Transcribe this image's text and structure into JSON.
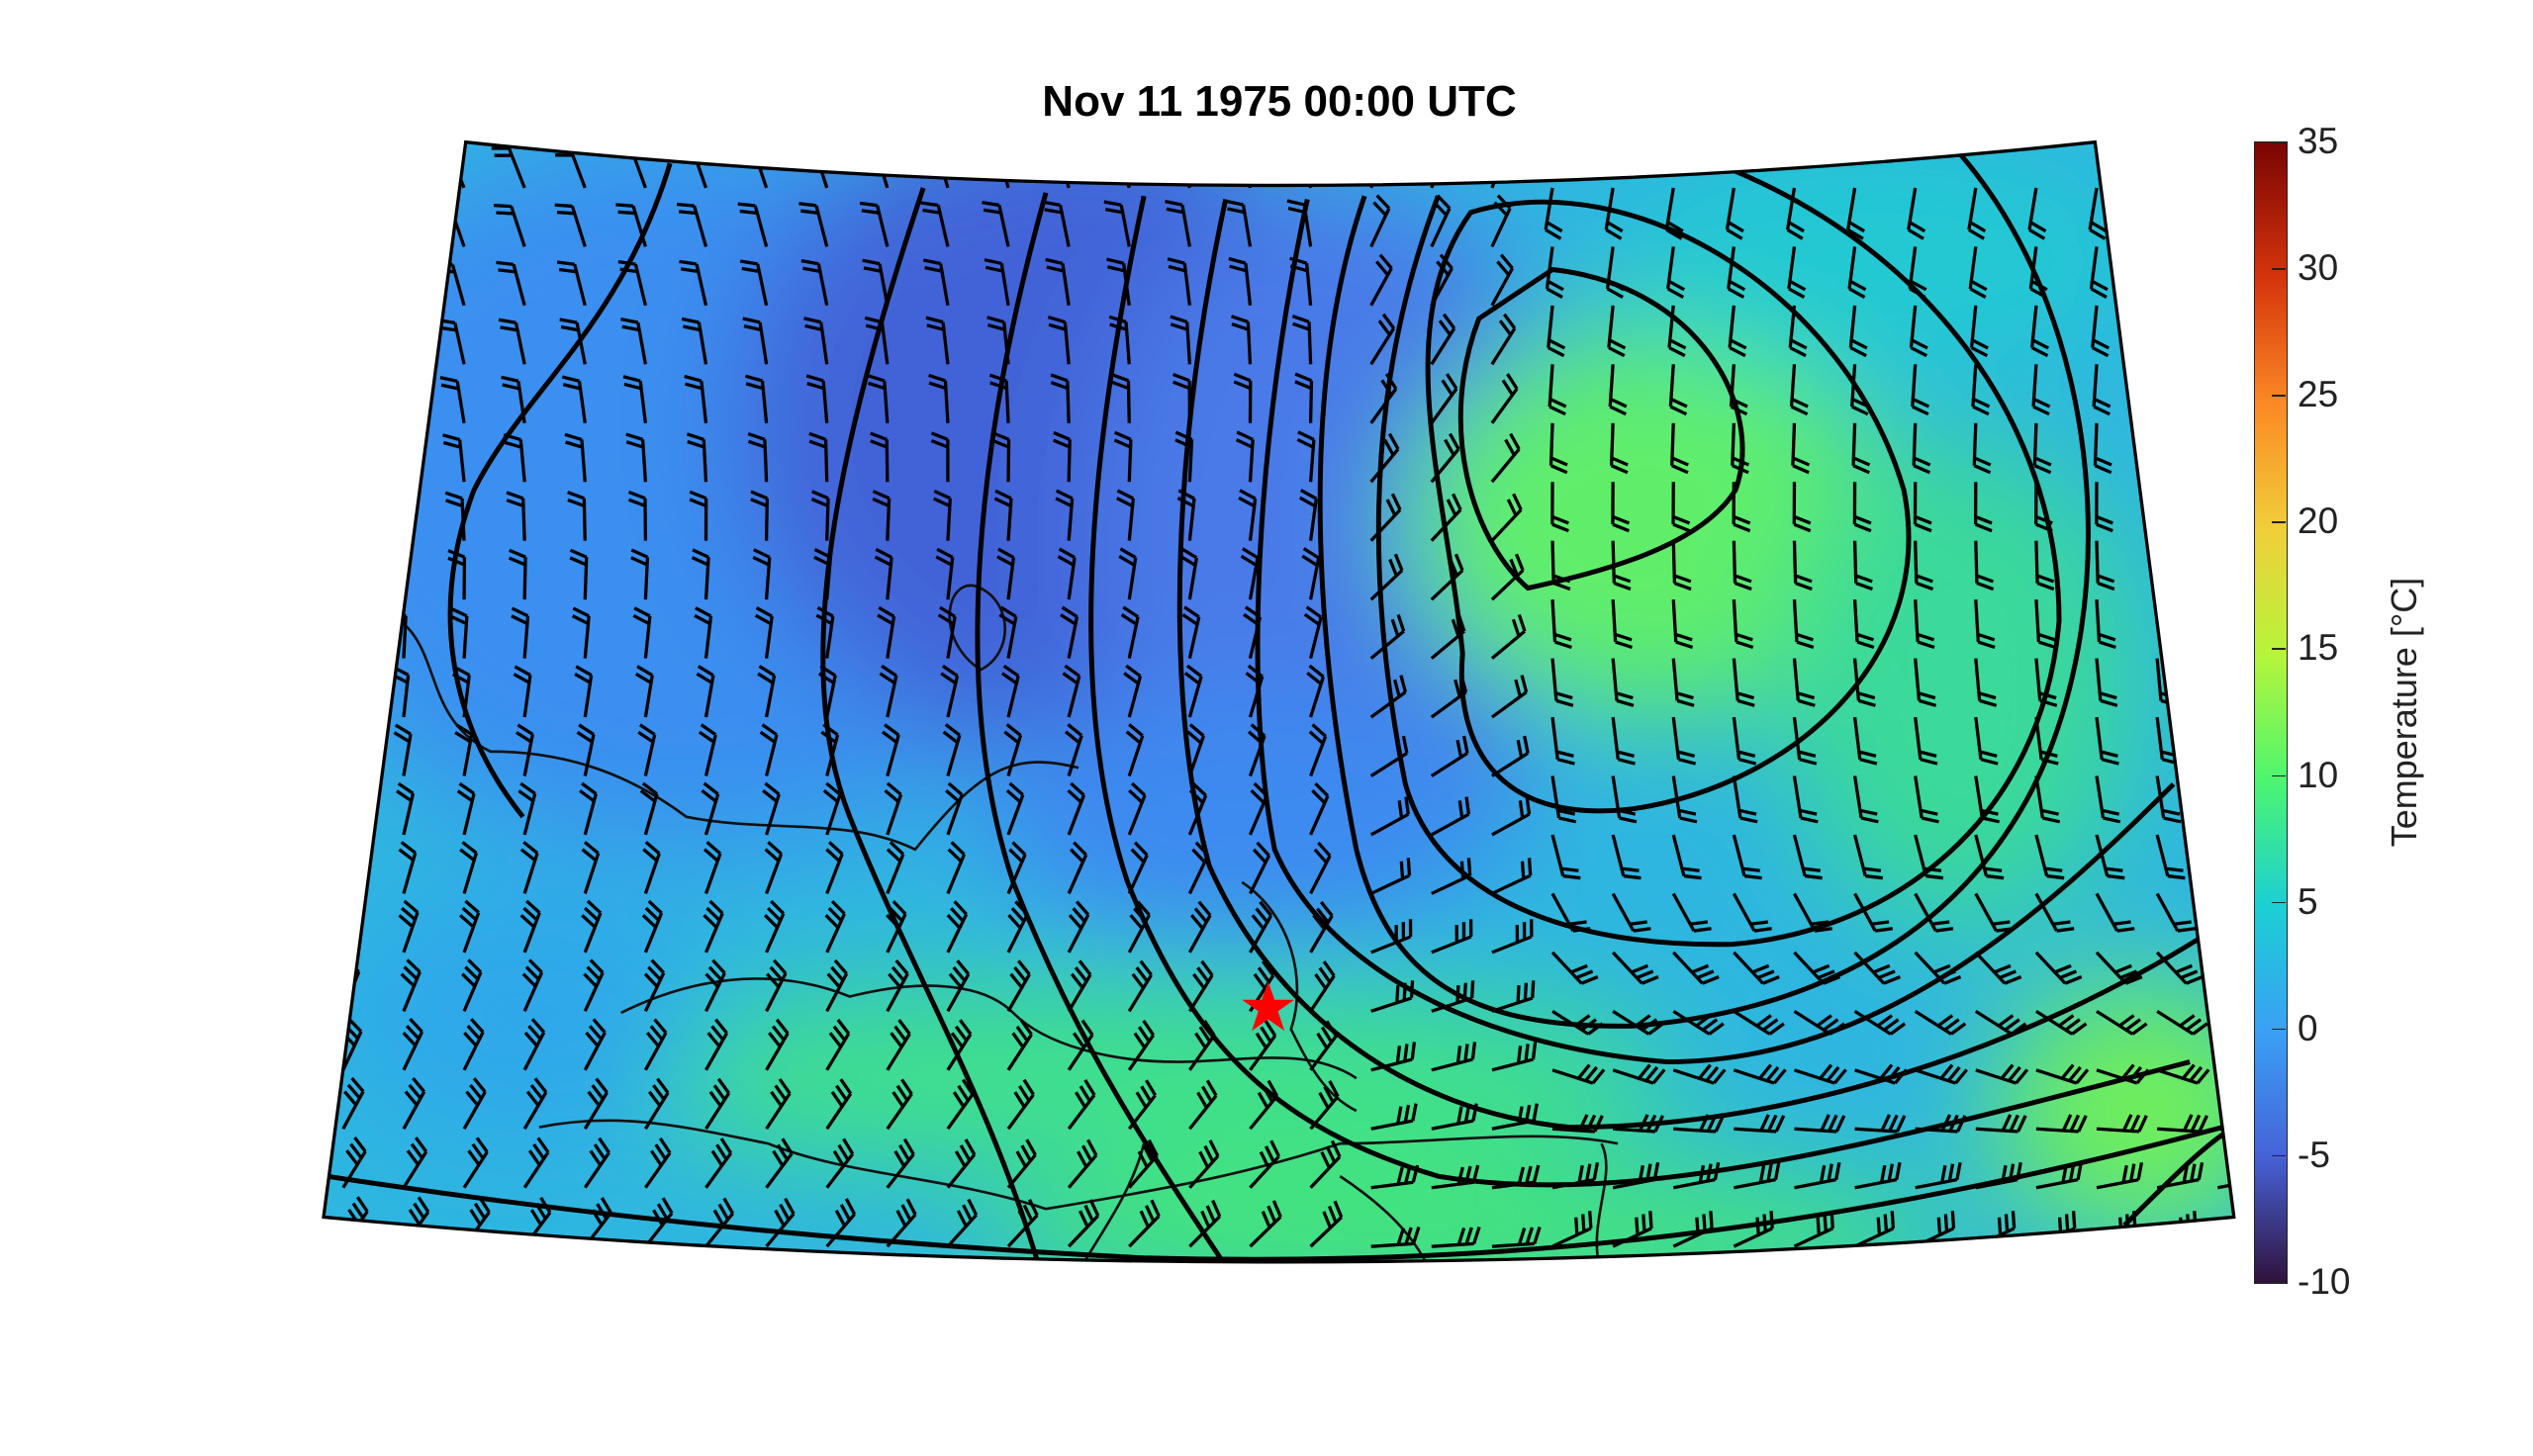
{
  "title": "Nov 11 1975 00:00 UTC",
  "colorbar": {
    "label": "Temperature [°C]",
    "range": [
      -10,
      35
    ],
    "ticks": [
      "35",
      "30",
      "25",
      "20",
      "15",
      "10",
      "5",
      "0",
      "-5",
      "-10"
    ],
    "colormap": "turbo",
    "colors": {
      "-10": "#30123b",
      "-5": "#4662d7",
      "0": "#3aa0f5",
      "5": "#1bcfd4",
      "10": "#4cf570",
      "15": "#b5f53a",
      "20": "#f0cf3a",
      "25": "#fb8a24",
      "30": "#d6350c",
      "35": "#7a0403"
    }
  },
  "map": {
    "field": "temperature",
    "overlays": [
      "pressure-contours",
      "wind-barbs",
      "coastlines"
    ],
    "marker": {
      "symbol": "star",
      "color": "#ff0000"
    }
  }
}
